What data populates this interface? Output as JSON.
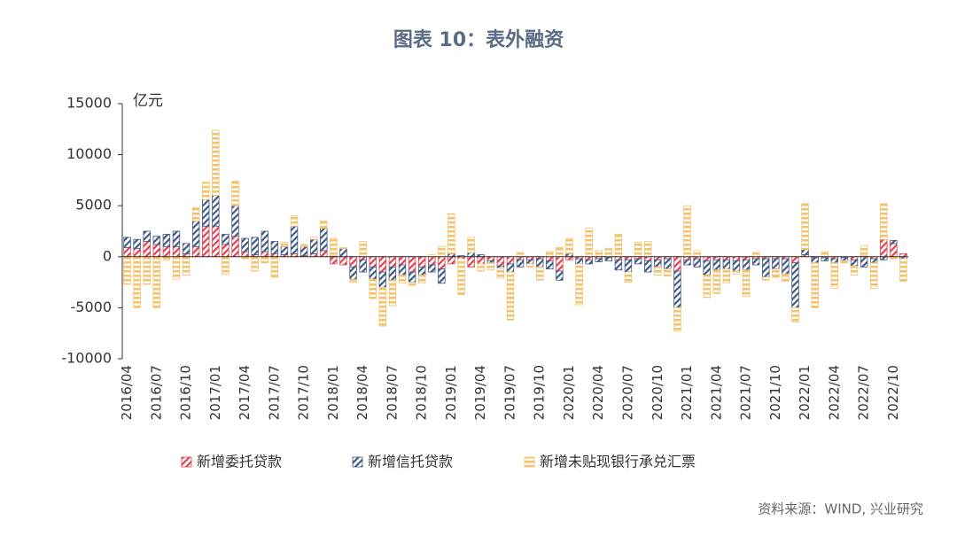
{
  "chart_data": {
    "type": "stacked_bar",
    "title": "图表 10：表外融资",
    "y_unit": "亿元",
    "source": "资料来源：WIND, 兴业研究",
    "categories": [
      "2016/04",
      null,
      null,
      "2016/07",
      null,
      null,
      "2016/10",
      null,
      null,
      "2017/01",
      null,
      null,
      "2017/04",
      null,
      null,
      "2017/07",
      null,
      null,
      "2017/10",
      null,
      null,
      "2018/01",
      null,
      null,
      "2018/04",
      null,
      null,
      "2018/07",
      null,
      null,
      "2018/10",
      null,
      null,
      "2019/01",
      null,
      null,
      "2019/04",
      null,
      null,
      "2019/07",
      null,
      null,
      "2019/10",
      null,
      null,
      "2020/01",
      null,
      null,
      "2020/04",
      null,
      null,
      "2020/07",
      null,
      null,
      "2020/10",
      null,
      null,
      "2021/01",
      null,
      null,
      "2021/04",
      null,
      null,
      "2021/07",
      null,
      null,
      "2021/10",
      null,
      null,
      "2022/01",
      null,
      null,
      "2022/04",
      null,
      null,
      "2022/07",
      null,
      null,
      "2022/10",
      null
    ],
    "series": [
      {
        "name": "新增委托贷款",
        "color": "#e0404f",
        "values": [
          900,
          800,
          1500,
          1200,
          1000,
          1000,
          300,
          1000,
          3000,
          3000,
          1200,
          2000,
          500,
          200,
          500,
          300,
          200,
          300,
          100,
          300,
          600,
          -700,
          -800,
          -1000,
          -300,
          -1000,
          -1500,
          -1000,
          -800,
          -1500,
          -1000,
          -800,
          -1200,
          -700,
          -200,
          -1000,
          -700,
          -400,
          -900,
          -700,
          -300,
          -300,
          -200,
          -400,
          -1400,
          -300,
          -200,
          -300,
          -200,
          -100,
          -300,
          -300,
          -200,
          -400,
          -300,
          -200,
          -1400,
          -300,
          -200,
          -400,
          -300,
          -300,
          -400,
          -300,
          -200,
          -200,
          -200,
          -200,
          -600,
          200,
          -100,
          -100,
          -200,
          -100,
          -300,
          100,
          -200,
          1700,
          1300,
          300
        ]
      },
      {
        "name": "新增信托贷款",
        "color": "#3f5a84",
        "values": [
          1000,
          900,
          1000,
          800,
          1200,
          1500,
          1000,
          2500,
          2600,
          3000,
          1000,
          3000,
          1300,
          1700,
          2000,
          1200,
          800,
          2700,
          900,
          1400,
          2200,
          100,
          800,
          -1200,
          -1200,
          -1200,
          -1500,
          -1300,
          -1000,
          -1000,
          -800,
          -700,
          -1400,
          300,
          100,
          400,
          200,
          -200,
          -200,
          -800,
          -700,
          -400,
          -800,
          -800,
          -900,
          300,
          -500,
          -400,
          -300,
          -300,
          -1000,
          -1200,
          -500,
          -1100,
          -700,
          -1000,
          -3600,
          -500,
          -800,
          -1400,
          -1000,
          -900,
          -1000,
          -1000,
          -600,
          -1800,
          -1000,
          -1500,
          -4400,
          500,
          -500,
          -300,
          -400,
          -300,
          -600,
          -1000,
          -400,
          -300,
          300,
          -200
        ]
      },
      {
        "name": "新增未贴现银行承兑汇票",
        "color": "#f5c26b",
        "values": [
          -2700,
          -5000,
          -2700,
          -5000,
          -300,
          -2200,
          -1800,
          1300,
          1700,
          6400,
          -1700,
          2400,
          -200,
          -1400,
          -600,
          -2000,
          400,
          1000,
          200,
          200,
          700,
          1700,
          100,
          -300,
          1500,
          -1900,
          -3800,
          -2500,
          -800,
          -300,
          -800,
          200,
          1000,
          3900,
          -3500,
          1500,
          -700,
          -700,
          -1000,
          -4700,
          400,
          -300,
          -1300,
          500,
          900,
          1500,
          -4000,
          2800,
          600,
          800,
          2200,
          -1000,
          1400,
          1500,
          -800,
          -700,
          -2300,
          5000,
          600,
          -2200,
          -2300,
          -1400,
          -300,
          -2600,
          400,
          -300,
          -800,
          -700,
          -1400,
          4500,
          -4400,
          500,
          -2500,
          -200,
          -900,
          1000,
          -2500,
          3500,
          -200,
          -2200
        ]
      }
    ],
    "ylim": [
      -10000,
      15000
    ],
    "yticks": [
      -10000,
      -5000,
      0,
      5000,
      10000,
      15000
    ]
  }
}
